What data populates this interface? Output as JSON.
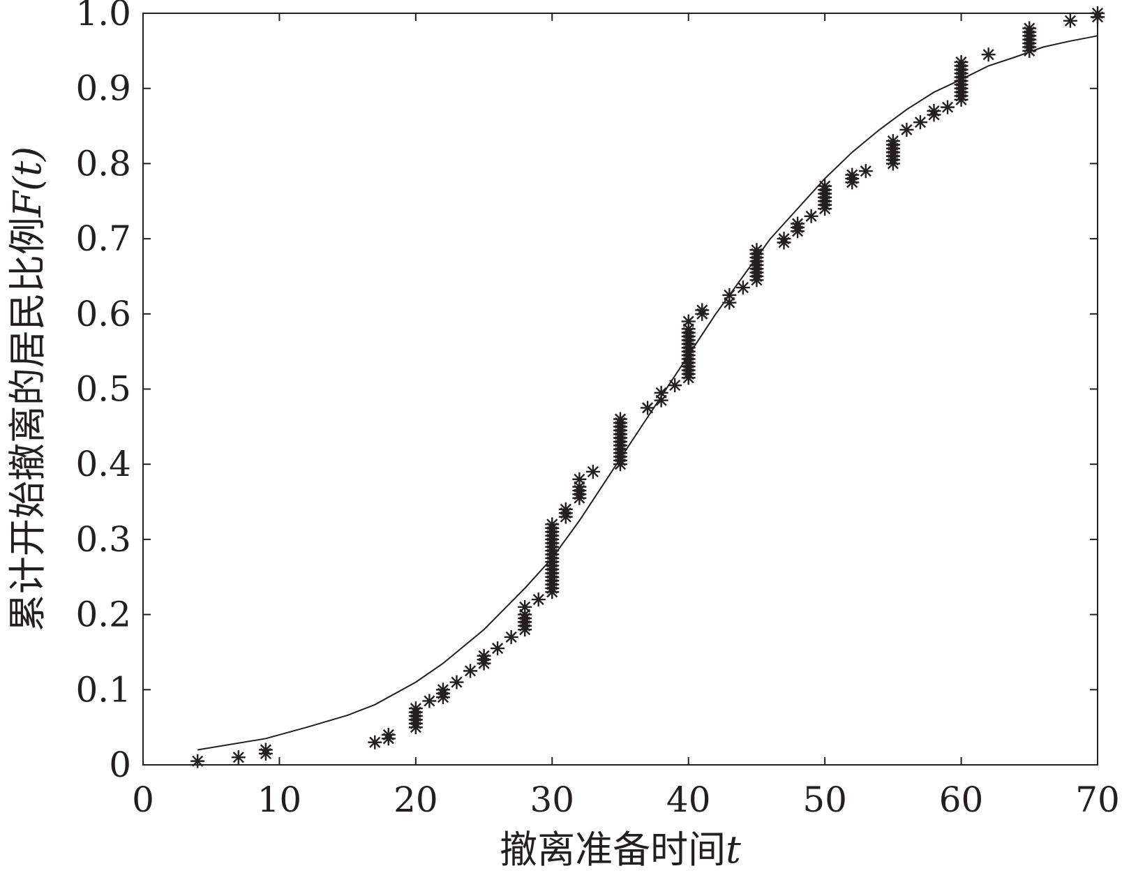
{
  "chart_data": {
    "type": "scatter",
    "title": "",
    "xlabel": "撤离准备时间",
    "xlabel_var": "t",
    "ylabel": "累计开始撤离的居民比例",
    "ylabel_var": "F(t)",
    "xlim": [
      0,
      70
    ],
    "ylim": [
      0,
      1.0
    ],
    "xticks": [
      0,
      10,
      20,
      30,
      40,
      50,
      60,
      70
    ],
    "xtick_labels": [
      "0",
      "10",
      "20",
      "30",
      "40",
      "50",
      "60",
      "70"
    ],
    "yticks": [
      0,
      0.1,
      0.2,
      0.3,
      0.4,
      0.5,
      0.6,
      0.7,
      0.8,
      0.9,
      1.0
    ],
    "ytick_labels": [
      "0",
      "0.1",
      "0.2",
      "0.3",
      "0.4",
      "0.5",
      "0.6",
      "0.7",
      "0.8",
      "0.9",
      "1.0"
    ],
    "grid": false,
    "legend": "none",
    "colors": {
      "ink": "#231f20",
      "background": "#ffffff"
    },
    "series": [
      {
        "kind": "scatter",
        "marker": "asterisk",
        "points": [
          [
            4,
            0.005
          ],
          [
            7,
            0.01
          ],
          [
            9,
            0.015
          ],
          [
            9,
            0.02
          ],
          [
            17,
            0.03
          ],
          [
            18,
            0.035
          ],
          [
            18,
            0.04
          ],
          [
            20,
            0.05
          ],
          [
            20,
            0.055
          ],
          [
            20,
            0.06
          ],
          [
            20,
            0.065
          ],
          [
            20,
            0.07
          ],
          [
            20,
            0.075
          ],
          [
            21,
            0.085
          ],
          [
            22,
            0.09
          ],
          [
            22,
            0.095
          ],
          [
            22,
            0.1
          ],
          [
            23,
            0.11
          ],
          [
            24,
            0.125
          ],
          [
            25,
            0.135
          ],
          [
            25,
            0.14
          ],
          [
            25,
            0.145
          ],
          [
            26,
            0.155
          ],
          [
            27,
            0.17
          ],
          [
            28,
            0.18
          ],
          [
            28,
            0.185
          ],
          [
            28,
            0.19
          ],
          [
            28,
            0.195
          ],
          [
            28,
            0.2
          ],
          [
            28,
            0.21
          ],
          [
            29,
            0.22
          ],
          [
            30,
            0.23
          ],
          [
            30,
            0.235
          ],
          [
            30,
            0.24
          ],
          [
            30,
            0.245
          ],
          [
            30,
            0.25
          ],
          [
            30,
            0.255
          ],
          [
            30,
            0.26
          ],
          [
            30,
            0.265
          ],
          [
            30,
            0.27
          ],
          [
            30,
            0.275
          ],
          [
            30,
            0.28
          ],
          [
            30,
            0.285
          ],
          [
            30,
            0.29
          ],
          [
            30,
            0.295
          ],
          [
            30,
            0.3
          ],
          [
            30,
            0.305
          ],
          [
            30,
            0.31
          ],
          [
            30,
            0.315
          ],
          [
            30,
            0.32
          ],
          [
            31,
            0.33
          ],
          [
            31,
            0.335
          ],
          [
            31,
            0.34
          ],
          [
            32,
            0.355
          ],
          [
            32,
            0.36
          ],
          [
            32,
            0.365
          ],
          [
            32,
            0.37
          ],
          [
            32,
            0.38
          ],
          [
            33,
            0.39
          ],
          [
            35,
            0.4
          ],
          [
            35,
            0.405
          ],
          [
            35,
            0.41
          ],
          [
            35,
            0.415
          ],
          [
            35,
            0.42
          ],
          [
            35,
            0.425
          ],
          [
            35,
            0.43
          ],
          [
            35,
            0.435
          ],
          [
            35,
            0.44
          ],
          [
            35,
            0.445
          ],
          [
            35,
            0.45
          ],
          [
            35,
            0.455
          ],
          [
            35,
            0.46
          ],
          [
            37,
            0.475
          ],
          [
            38,
            0.485
          ],
          [
            38,
            0.495
          ],
          [
            39,
            0.505
          ],
          [
            40,
            0.515
          ],
          [
            40,
            0.52
          ],
          [
            40,
            0.525
          ],
          [
            40,
            0.53
          ],
          [
            40,
            0.535
          ],
          [
            40,
            0.54
          ],
          [
            40,
            0.545
          ],
          [
            40,
            0.55
          ],
          [
            40,
            0.555
          ],
          [
            40,
            0.56
          ],
          [
            40,
            0.565
          ],
          [
            40,
            0.57
          ],
          [
            40,
            0.575
          ],
          [
            40,
            0.58
          ],
          [
            40,
            0.59
          ],
          [
            41,
            0.6
          ],
          [
            41,
            0.605
          ],
          [
            43,
            0.615
          ],
          [
            43,
            0.625
          ],
          [
            44,
            0.635
          ],
          [
            45,
            0.645
          ],
          [
            45,
            0.65
          ],
          [
            45,
            0.655
          ],
          [
            45,
            0.66
          ],
          [
            45,
            0.665
          ],
          [
            45,
            0.67
          ],
          [
            45,
            0.675
          ],
          [
            45,
            0.68
          ],
          [
            45,
            0.685
          ],
          [
            47,
            0.695
          ],
          [
            47,
            0.7
          ],
          [
            48,
            0.71
          ],
          [
            48,
            0.715
          ],
          [
            48,
            0.72
          ],
          [
            49,
            0.73
          ],
          [
            50,
            0.74
          ],
          [
            50,
            0.745
          ],
          [
            50,
            0.75
          ],
          [
            50,
            0.755
          ],
          [
            50,
            0.76
          ],
          [
            50,
            0.765
          ],
          [
            50,
            0.77
          ],
          [
            52,
            0.775
          ],
          [
            52,
            0.78
          ],
          [
            52,
            0.785
          ],
          [
            53,
            0.79
          ],
          [
            55,
            0.8
          ],
          [
            55,
            0.805
          ],
          [
            55,
            0.81
          ],
          [
            55,
            0.815
          ],
          [
            55,
            0.82
          ],
          [
            55,
            0.825
          ],
          [
            55,
            0.83
          ],
          [
            56,
            0.845
          ],
          [
            57,
            0.855
          ],
          [
            58,
            0.865
          ],
          [
            58,
            0.87
          ],
          [
            59,
            0.875
          ],
          [
            60,
            0.885
          ],
          [
            60,
            0.89
          ],
          [
            60,
            0.895
          ],
          [
            60,
            0.9
          ],
          [
            60,
            0.905
          ],
          [
            60,
            0.91
          ],
          [
            60,
            0.915
          ],
          [
            60,
            0.92
          ],
          [
            60,
            0.925
          ],
          [
            60,
            0.93
          ],
          [
            60,
            0.935
          ],
          [
            62,
            0.945
          ],
          [
            65,
            0.95
          ],
          [
            65,
            0.955
          ],
          [
            65,
            0.96
          ],
          [
            65,
            0.965
          ],
          [
            65,
            0.97
          ],
          [
            65,
            0.975
          ],
          [
            65,
            0.98
          ],
          [
            68,
            0.99
          ],
          [
            70,
            0.995
          ],
          [
            70,
            1.0
          ]
        ]
      },
      {
        "kind": "line",
        "points": [
          [
            4,
            0.02
          ],
          [
            9,
            0.035
          ],
          [
            12,
            0.05
          ],
          [
            15,
            0.066
          ],
          [
            17,
            0.08
          ],
          [
            20,
            0.11
          ],
          [
            22,
            0.135
          ],
          [
            25,
            0.18
          ],
          [
            28,
            0.235
          ],
          [
            30,
            0.275
          ],
          [
            32,
            0.325
          ],
          [
            34,
            0.38
          ],
          [
            36,
            0.435
          ],
          [
            38,
            0.49
          ],
          [
            40,
            0.545
          ],
          [
            42,
            0.6
          ],
          [
            44,
            0.65
          ],
          [
            46,
            0.7
          ],
          [
            48,
            0.74
          ],
          [
            50,
            0.78
          ],
          [
            52,
            0.815
          ],
          [
            54,
            0.845
          ],
          [
            56,
            0.872
          ],
          [
            58,
            0.895
          ],
          [
            60,
            0.912
          ],
          [
            62,
            0.93
          ],
          [
            64,
            0.942
          ],
          [
            66,
            0.955
          ],
          [
            68,
            0.963
          ],
          [
            70,
            0.97
          ]
        ]
      }
    ]
  }
}
